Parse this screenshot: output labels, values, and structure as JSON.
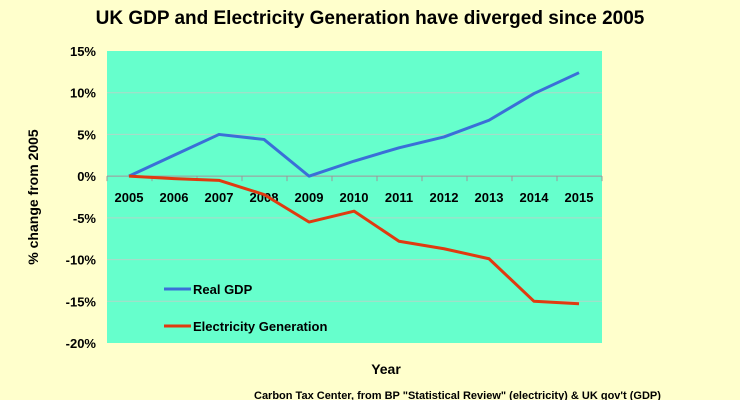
{
  "chart_data": {
    "type": "line",
    "title": "UK GDP and Electricity Generation have diverged since 2005",
    "xlabel": "Year",
    "ylabel": "% change from 2005",
    "source": "Carbon Tax Center, from BP \"Statistical Review\" (electricity) & UK gov't (GDP)",
    "categories": [
      "2005",
      "2006",
      "2007",
      "2008",
      "2009",
      "2010",
      "2011",
      "2012",
      "2013",
      "2014",
      "2015"
    ],
    "yticks": [
      15,
      10,
      5,
      0,
      -5,
      -10,
      -15,
      -20
    ],
    "ytick_labels": [
      "15%",
      "10%",
      "5%",
      "0%",
      "-5%",
      "-10%",
      "-15%",
      "-20%"
    ],
    "ylim": [
      -20,
      15
    ],
    "grid": true,
    "legend_position": "bottom-left",
    "colors": {
      "background": "#FFFFCC",
      "plot": "#66FFCC",
      "grid": "#B0D8C8"
    },
    "series": [
      {
        "name": "Real GDP",
        "color": "#3A6FD8",
        "values": [
          0,
          2.5,
          5.0,
          4.4,
          0,
          1.8,
          3.4,
          4.7,
          6.7,
          9.9,
          12.4
        ]
      },
      {
        "name": "Electricity Generation",
        "color": "#E03A10",
        "values": [
          0,
          -0.3,
          -0.5,
          -2.2,
          -5.5,
          -4.2,
          -7.8,
          -8.7,
          -9.9,
          -15.0,
          -15.3
        ]
      }
    ]
  }
}
